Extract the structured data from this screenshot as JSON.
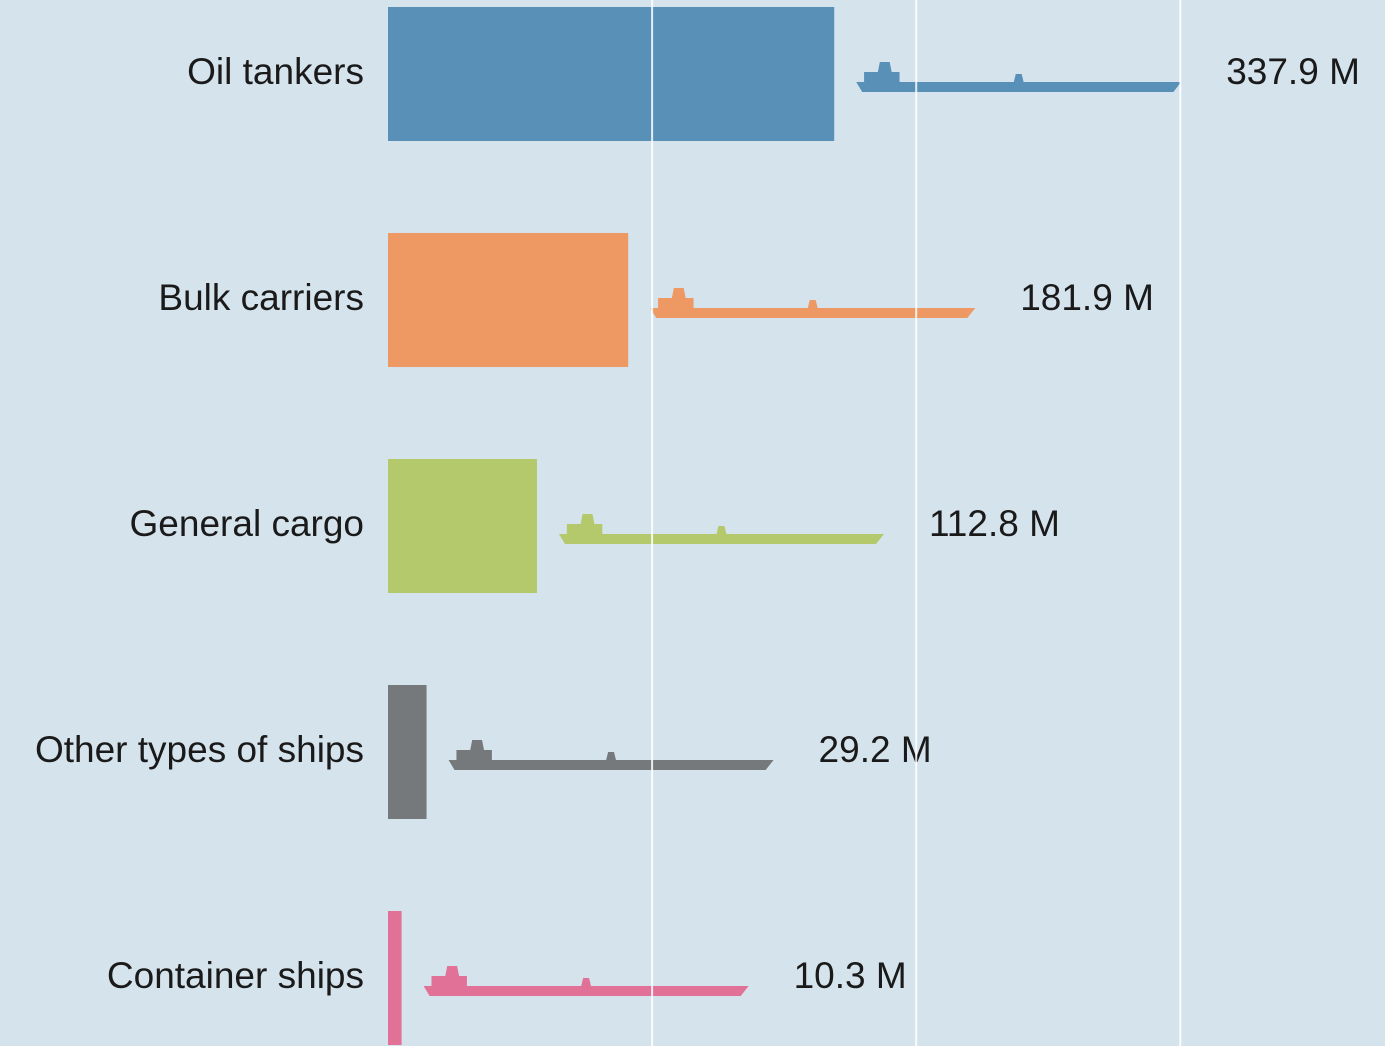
{
  "chart_data": {
    "type": "bar",
    "orientation": "horizontal",
    "categories": [
      "Oil tankers",
      "Bulk carriers",
      "General cargo",
      "Other types of ships",
      "Container ships"
    ],
    "values": [
      337.9,
      181.9,
      112.8,
      29.2,
      10.3
    ],
    "value_labels": [
      "337.9 M",
      "181.9 M",
      "112.8 M",
      "29.2 M",
      "10.3 M"
    ],
    "colors": [
      "#5890b8",
      "#ee9863",
      "#b3c96c",
      "#76797c",
      "#e27198"
    ],
    "xlim": [
      0,
      755
    ],
    "xticks": [
      200,
      400,
      600
    ],
    "grid": true
  }
}
